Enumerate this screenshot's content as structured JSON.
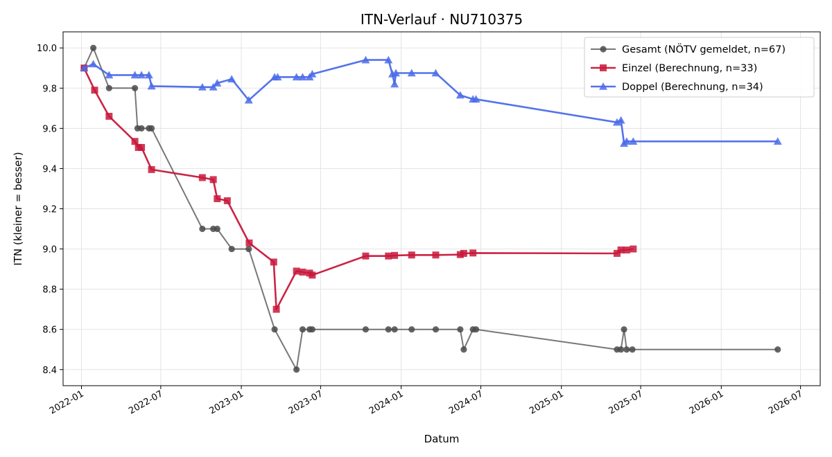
{
  "chart_data": {
    "type": "line",
    "title": "ITN-Verlauf · NU710375",
    "xlabel": "Datum",
    "ylabel": "ITN  (kleiner = besser)",
    "xlim": [
      "2021-11-20",
      "2026-08-15"
    ],
    "ylim": [
      8.32,
      10.08
    ],
    "grid": true,
    "legend_position": "top-right",
    "x_ticks": [
      "2022-01",
      "2022-07",
      "2023-01",
      "2023-07",
      "2024-01",
      "2024-07",
      "2025-01",
      "2025-07",
      "2026-01",
      "2026-07"
    ],
    "y_ticks": [
      8.4,
      8.6,
      8.8,
      9.0,
      9.2,
      9.4,
      9.6,
      9.8,
      10.0
    ],
    "series": [
      {
        "name": "Gesamt (NÖTV gemeldet, n=67)",
        "color": "#4a4a4a",
        "marker": "circle",
        "points": [
          [
            "2022-01-07",
            9.9
          ],
          [
            "2022-01-28",
            10.0
          ],
          [
            "2022-03-05",
            9.8
          ],
          [
            "2022-05-03",
            9.8
          ],
          [
            "2022-05-09",
            9.6
          ],
          [
            "2022-05-18",
            9.6
          ],
          [
            "2022-06-04",
            9.6
          ],
          [
            "2022-06-10",
            9.6
          ],
          [
            "2022-10-04",
            9.1
          ],
          [
            "2022-10-29",
            9.1
          ],
          [
            "2022-11-07",
            9.1
          ],
          [
            "2022-12-10",
            9.0
          ],
          [
            "2023-01-18",
            9.0
          ],
          [
            "2023-03-18",
            8.6
          ],
          [
            "2023-05-07",
            8.4
          ],
          [
            "2023-05-21",
            8.6
          ],
          [
            "2023-06-06",
            8.6
          ],
          [
            "2023-06-12",
            8.6
          ],
          [
            "2023-10-12",
            8.6
          ],
          [
            "2023-12-03",
            8.6
          ],
          [
            "2023-12-17",
            8.6
          ],
          [
            "2024-01-25",
            8.6
          ],
          [
            "2024-03-20",
            8.6
          ],
          [
            "2024-05-15",
            8.6
          ],
          [
            "2024-05-23",
            8.5
          ],
          [
            "2024-06-13",
            8.6
          ],
          [
            "2024-06-20",
            8.6
          ],
          [
            "2025-05-08",
            8.5
          ],
          [
            "2025-05-17",
            8.5
          ],
          [
            "2025-05-24",
            8.6
          ],
          [
            "2025-05-30",
            8.5
          ],
          [
            "2025-06-12",
            8.5
          ],
          [
            "2026-05-10",
            8.5
          ]
        ]
      },
      {
        "name": "Einzel (Berechnung, n=33)",
        "color": "#c8173a",
        "marker": "square",
        "points": [
          [
            "2022-01-07",
            9.9
          ],
          [
            "2022-01-31",
            9.79
          ],
          [
            "2022-03-05",
            9.66
          ],
          [
            "2022-05-03",
            9.535
          ],
          [
            "2022-05-11",
            9.505
          ],
          [
            "2022-05-18",
            9.505
          ],
          [
            "2022-06-10",
            9.395
          ],
          [
            "2022-10-04",
            9.355
          ],
          [
            "2022-10-29",
            9.345
          ],
          [
            "2022-11-07",
            9.25
          ],
          [
            "2022-11-30",
            9.24
          ],
          [
            "2023-01-19",
            9.03
          ],
          [
            "2023-03-16",
            8.935
          ],
          [
            "2023-03-22",
            8.7
          ],
          [
            "2023-05-07",
            8.89
          ],
          [
            "2023-05-21",
            8.885
          ],
          [
            "2023-06-06",
            8.88
          ],
          [
            "2023-06-12",
            8.87
          ],
          [
            "2023-10-12",
            8.965
          ],
          [
            "2023-12-03",
            8.965
          ],
          [
            "2023-12-17",
            8.968
          ],
          [
            "2024-01-25",
            8.97
          ],
          [
            "2024-03-20",
            8.97
          ],
          [
            "2024-05-15",
            8.972
          ],
          [
            "2024-05-23",
            8.978
          ],
          [
            "2024-06-13",
            8.98
          ],
          [
            "2025-05-08",
            8.978
          ],
          [
            "2025-05-17",
            8.995
          ],
          [
            "2025-05-30",
            8.995
          ],
          [
            "2025-06-14",
            9.0
          ]
        ]
      },
      {
        "name": "Doppel (Berechnung, n=34)",
        "color": "#4b6bea",
        "marker": "triangle",
        "points": [
          [
            "2022-01-07",
            9.9
          ],
          [
            "2022-01-28",
            9.92
          ],
          [
            "2022-03-05",
            9.865
          ],
          [
            "2022-05-03",
            9.865
          ],
          [
            "2022-05-18",
            9.865
          ],
          [
            "2022-06-04",
            9.865
          ],
          [
            "2022-06-10",
            9.81
          ],
          [
            "2022-10-04",
            9.805
          ],
          [
            "2022-10-29",
            9.805
          ],
          [
            "2022-11-07",
            9.825
          ],
          [
            "2022-12-10",
            9.845
          ],
          [
            "2023-01-18",
            9.74
          ],
          [
            "2023-03-18",
            9.855
          ],
          [
            "2023-03-25",
            9.855
          ],
          [
            "2023-05-07",
            9.855
          ],
          [
            "2023-05-21",
            9.855
          ],
          [
            "2023-06-06",
            9.855
          ],
          [
            "2023-06-12",
            9.87
          ],
          [
            "2023-10-12",
            9.94
          ],
          [
            "2023-12-03",
            9.94
          ],
          [
            "2023-12-12",
            9.87
          ],
          [
            "2023-12-17",
            9.82
          ],
          [
            "2023-12-20",
            9.875
          ],
          [
            "2024-01-25",
            9.875
          ],
          [
            "2024-03-20",
            9.875
          ],
          [
            "2024-05-15",
            9.765
          ],
          [
            "2024-06-13",
            9.745
          ],
          [
            "2024-06-20",
            9.745
          ],
          [
            "2025-05-08",
            9.63
          ],
          [
            "2025-05-17",
            9.64
          ],
          [
            "2025-05-24",
            9.525
          ],
          [
            "2025-05-30",
            9.535
          ],
          [
            "2025-06-14",
            9.535
          ],
          [
            "2026-05-10",
            9.535
          ]
        ]
      }
    ]
  }
}
